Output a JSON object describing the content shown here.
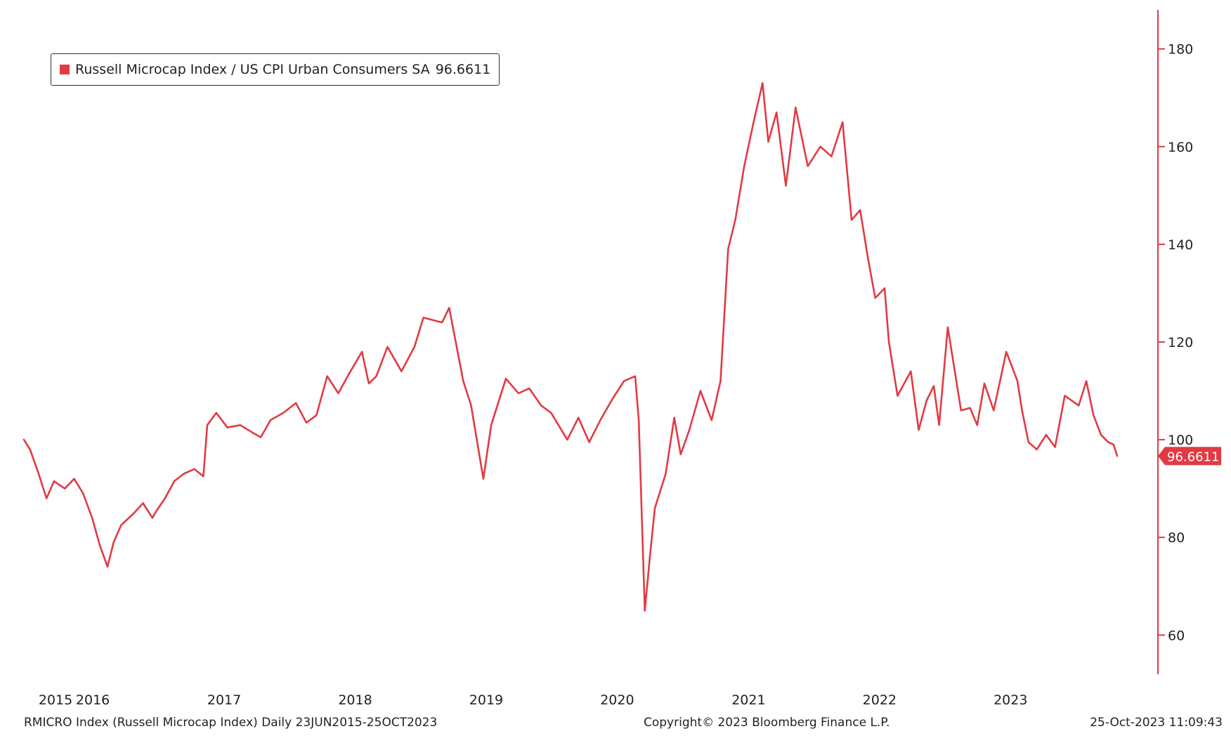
{
  "legend": {
    "label": "Russell Microcap Index / US CPI Urban Consumers SA",
    "last_value": "96.6611"
  },
  "footer": {
    "left": "RMICRO Index (Russell Microcap Index)  Daily 23JUN2015-25OCT2023",
    "center": "Copyright© 2023 Bloomberg Finance L.P.",
    "right": "25-Oct-2023 11:09:43"
  },
  "colors": {
    "series": "#e23a44",
    "axis": "#e23a44",
    "text": "#222222"
  },
  "chart_data": {
    "type": "line",
    "title": "",
    "xlabel": "",
    "ylabel": "",
    "ylim": [
      52,
      188
    ],
    "xlim": [
      "2015-06-23",
      "2023-10-25"
    ],
    "y_ticks": [
      60,
      80,
      100,
      120,
      140,
      160,
      180
    ],
    "x_tick_labels": [
      "2015",
      "2016",
      "2017",
      "2018",
      "2019",
      "2020",
      "2021",
      "2022",
      "2023"
    ],
    "grid": false,
    "legend_position": "top-left",
    "series": [
      {
        "name": "Russell Microcap Index / US CPI Urban Consumers SA",
        "last_value": 96.6611,
        "x": [
          "2015-06-23",
          "2015-07-10",
          "2015-08-01",
          "2015-08-25",
          "2015-09-15",
          "2015-10-15",
          "2015-11-10",
          "2015-12-05",
          "2015-12-30",
          "2016-01-20",
          "2016-02-11",
          "2016-02-28",
          "2016-03-20",
          "2016-04-25",
          "2016-05-20",
          "2016-06-15",
          "2016-06-27",
          "2016-07-20",
          "2016-08-15",
          "2016-09-10",
          "2016-10-10",
          "2016-11-04",
          "2016-11-15",
          "2016-12-10",
          "2017-01-10",
          "2017-02-15",
          "2017-03-20",
          "2017-04-13",
          "2017-05-10",
          "2017-06-15",
          "2017-07-20",
          "2017-08-18",
          "2017-09-15",
          "2017-10-15",
          "2017-11-15",
          "2017-12-15",
          "2018-01-20",
          "2018-02-08",
          "2018-03-01",
          "2018-04-01",
          "2018-05-10",
          "2018-06-15",
          "2018-07-10",
          "2018-08-31",
          "2018-09-20",
          "2018-10-29",
          "2018-11-20",
          "2018-12-24",
          "2019-01-15",
          "2019-02-25",
          "2019-04-01",
          "2019-05-01",
          "2019-06-03",
          "2019-07-01",
          "2019-08-15",
          "2019-09-15",
          "2019-10-15",
          "2019-11-15",
          "2019-12-20",
          "2020-01-20",
          "2020-02-20",
          "2020-03-01",
          "2020-03-18",
          "2020-04-01",
          "2020-04-15",
          "2020-05-15",
          "2020-06-08",
          "2020-06-26",
          "2020-07-20",
          "2020-08-20",
          "2020-09-20",
          "2020-10-15",
          "2020-11-05",
          "2020-11-25",
          "2020-12-20",
          "2021-01-15",
          "2021-02-09",
          "2021-02-25",
          "2021-03-20",
          "2021-04-15",
          "2021-05-12",
          "2021-06-15",
          "2021-07-20",
          "2021-08-20",
          "2021-09-20",
          "2021-10-15",
          "2021-11-08",
          "2021-11-30",
          "2021-12-20",
          "2022-01-15",
          "2022-01-27",
          "2022-02-20",
          "2022-03-29",
          "2022-04-20",
          "2022-05-12",
          "2022-06-01",
          "2022-06-16",
          "2022-07-10",
          "2022-08-16",
          "2022-09-10",
          "2022-09-30",
          "2022-10-20",
          "2022-11-15",
          "2022-12-20",
          "2023-01-20",
          "2023-02-02",
          "2023-02-20",
          "2023-03-15",
          "2023-04-10",
          "2023-05-05",
          "2023-06-01",
          "2023-07-10",
          "2023-07-31",
          "2023-08-20",
          "2023-09-10",
          "2023-09-30",
          "2023-10-15",
          "2023-10-25"
        ],
        "y": [
          100.0,
          98.0,
          93.5,
          88.0,
          91.5,
          90.0,
          92.0,
          89.0,
          84.0,
          78.5,
          74.0,
          79.0,
          82.5,
          85.0,
          87.0,
          84.0,
          85.5,
          88.0,
          91.5,
          93.0,
          94.0,
          92.5,
          103.0,
          105.5,
          102.5,
          103.0,
          101.5,
          100.5,
          104.0,
          105.5,
          107.5,
          103.5,
          105.0,
          113.0,
          109.5,
          113.5,
          118.0,
          111.5,
          113.0,
          119.0,
          114.0,
          119.0,
          125.0,
          124.0,
          127.0,
          112.0,
          107.0,
          92.0,
          103.0,
          112.5,
          109.5,
          110.5,
          107.0,
          105.5,
          100.0,
          104.5,
          99.5,
          104.0,
          108.5,
          112.0,
          113.0,
          104.0,
          65.0,
          76.0,
          86.0,
          93.0,
          104.5,
          97.0,
          102.0,
          110.0,
          104.0,
          112.0,
          139.0,
          145.0,
          156.0,
          165.0,
          173.0,
          161.0,
          167.0,
          152.0,
          168.0,
          156.0,
          160.0,
          158.0,
          165.0,
          145.0,
          147.0,
          137.0,
          129.0,
          131.0,
          120.0,
          109.0,
          114.0,
          102.0,
          108.0,
          111.0,
          103.0,
          123.0,
          106.0,
          106.5,
          103.0,
          111.5,
          106.0,
          118.0,
          112.0,
          106.0,
          99.5,
          98.0,
          101.0,
          98.5,
          109.0,
          107.0,
          112.0,
          105.0,
          101.0,
          99.5,
          99.0,
          96.6611
        ]
      }
    ]
  }
}
